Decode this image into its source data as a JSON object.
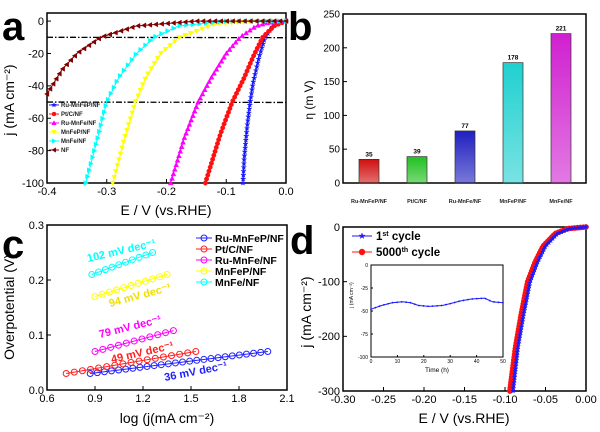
{
  "panel_letters": [
    "a",
    "b",
    "c",
    "d"
  ],
  "chart_data": [
    {
      "panel": "a",
      "type": "line",
      "xlabel": "E / V (vs.RHE)",
      "ylabel": "j (mA cm⁻²)",
      "xlim": [
        -0.4,
        0.0
      ],
      "ylim": [
        -100,
        5
      ],
      "xticks": [
        "-0.4",
        "-0.3",
        "-0.2",
        "-0.1",
        "0.0"
      ],
      "xtick_values": [
        -0.4,
        -0.3,
        -0.2,
        -0.1,
        0.0
      ],
      "yticks": [
        "0",
        "-20",
        "-40",
        "-60",
        "-80",
        "-100"
      ],
      "ytick_values": [
        0,
        -20,
        -40,
        -60,
        -80,
        -100
      ],
      "reference_lines_j": [
        -10,
        -50
      ],
      "legend_placement": "left",
      "series": [
        {
          "name": "Ru-MnFeP/NF",
          "color": "#1a1aff",
          "marker": "star",
          "x": [
            0,
            -0.02,
            -0.035,
            -0.045,
            -0.055,
            -0.06,
            -0.065,
            -0.07,
            -0.072
          ],
          "y": [
            0,
            -2,
            -10,
            -22,
            -38,
            -50,
            -65,
            -85,
            -100
          ]
        },
        {
          "name": "Pt/C/NF",
          "color": "#ff1010",
          "marker": "circle",
          "x": [
            0,
            -0.02,
            -0.039,
            -0.055,
            -0.07,
            -0.09,
            -0.11,
            -0.135
          ],
          "y": [
            0,
            -3,
            -10,
            -22,
            -35,
            -50,
            -70,
            -100
          ]
        },
        {
          "name": "Ru-MnFe/NF",
          "color": "#ff00ff",
          "marker": "triangle-up",
          "x": [
            0,
            -0.03,
            -0.05,
            -0.077,
            -0.1,
            -0.125,
            -0.147,
            -0.17,
            -0.193
          ],
          "y": [
            0,
            -1,
            -3,
            -10,
            -20,
            -35,
            -50,
            -72,
            -100
          ]
        },
        {
          "name": "MnFeP/NF",
          "color": "#ffff00",
          "marker": "triangle-down",
          "x": [
            0,
            -0.05,
            -0.12,
            -0.178,
            -0.21,
            -0.235,
            -0.252,
            -0.27,
            -0.29
          ],
          "y": [
            0,
            0,
            -2,
            -10,
            -20,
            -35,
            -50,
            -72,
            -100
          ]
        },
        {
          "name": "MnFe/NF",
          "color": "#00ffff",
          "marker": "triangle-right",
          "x": [
            0,
            -0.1,
            -0.18,
            -0.221,
            -0.25,
            -0.28,
            -0.3,
            -0.315,
            -0.335
          ],
          "y": [
            0,
            0,
            -3,
            -10,
            -20,
            -35,
            -50,
            -72,
            -100
          ]
        },
        {
          "name": "NF",
          "color": "#800000",
          "marker": "triangle-left",
          "x": [
            0,
            -0.15,
            -0.25,
            -0.31,
            -0.35,
            -0.375,
            -0.4
          ],
          "y": [
            0,
            0,
            -3,
            -10,
            -20,
            -30,
            -45
          ]
        }
      ]
    },
    {
      "panel": "b",
      "type": "bar",
      "ylabel": "η (m V)",
      "ylim": [
        0,
        250
      ],
      "yticks": [
        "0",
        "50",
        "100",
        "150",
        "200",
        "250"
      ],
      "ytick_values": [
        0,
        50,
        100,
        150,
        200,
        250
      ],
      "categories": [
        "Ru-MnFeP/NF",
        "Pt/C/NF",
        "Ru-MnFe/NF",
        "MnFeP/NF",
        "MnFe/NF"
      ],
      "values": [
        35,
        39,
        77,
        178,
        221
      ],
      "data_labels": [
        "35",
        "39",
        "77",
        "178",
        "221"
      ],
      "colors": [
        "#d01010",
        "#20c020",
        "#2020c0",
        "#20d0d0",
        "#d020d0"
      ]
    },
    {
      "panel": "c",
      "type": "scatter",
      "xlabel": "log (j(mA cm⁻²)",
      "ylabel": "Overpotential (V)",
      "xlim": [
        0.6,
        2.1
      ],
      "ylim": [
        0,
        0.3
      ],
      "xticks": [
        "0.6",
        "0.9",
        "1.2",
        "1.5",
        "1.8",
        "2.1"
      ],
      "xtick_values": [
        0.6,
        0.9,
        1.2,
        1.5,
        1.8,
        2.1
      ],
      "yticks": [
        "0.0",
        "0.1",
        "0.2",
        "0.3"
      ],
      "ytick_values": [
        0,
        0.1,
        0.2,
        0.3
      ],
      "legend_placement": "top-right",
      "series": [
        {
          "name": "Ru-MnFeP/NF",
          "color": "#2020ff",
          "slope_label": "36 mV dec⁻¹",
          "x": [
            0.87,
            1.98
          ],
          "y": [
            0.03,
            0.07
          ],
          "points": 26
        },
        {
          "name": "Pt/C/NF",
          "color": "#ff2020",
          "slope_label": "49 mV dec⁻¹",
          "x": [
            0.72,
            1.53
          ],
          "y": [
            0.03,
            0.07
          ],
          "points": 17
        },
        {
          "name": "Ru-MnFe/NF",
          "color": "#ff00ff",
          "slope_label": "79 mV dec⁻¹",
          "x": [
            0.9,
            1.39
          ],
          "y": [
            0.07,
            0.108
          ],
          "points": 11
        },
        {
          "name": "MnFeP/NF",
          "color": "#ffff00",
          "slope_label": "94 mV dec⁻¹",
          "x": [
            0.9,
            1.35
          ],
          "y": [
            0.17,
            0.21
          ],
          "points": 11
        },
        {
          "name": "MnFe/NF",
          "color": "#00ffff",
          "slope_label": "102 mV dec⁻¹",
          "x": [
            0.88,
            1.26
          ],
          "y": [
            0.21,
            0.25
          ],
          "points": 10
        }
      ]
    },
    {
      "panel": "d",
      "type": "line",
      "xlabel": "E / V (vs.RHE)",
      "ylabel": "j (mA cm⁻²)",
      "xlim": [
        -0.3,
        0.0
      ],
      "ylim": [
        -300,
        0
      ],
      "xticks": [
        "-0.30",
        "-0.25",
        "-0.20",
        "-0.15",
        "-0.10",
        "-0.05",
        "0.00"
      ],
      "xtick_values": [
        -0.3,
        -0.25,
        -0.2,
        -0.15,
        -0.1,
        -0.05,
        0
      ],
      "yticks": [
        "0",
        "-100",
        "-200",
        "-300"
      ],
      "ytick_values": [
        0,
        -100,
        -200,
        -300
      ],
      "legend_placement": "top-left",
      "series": [
        {
          "name_main": "1",
          "name_sup": "st",
          "name_rest": " cycle",
          "color": "#1a1aff",
          "marker": "star",
          "x": [
            0,
            -0.02,
            -0.035,
            -0.05,
            -0.06,
            -0.069,
            -0.077,
            -0.084,
            -0.09
          ],
          "y": [
            0,
            -3,
            -12,
            -35,
            -65,
            -100,
            -160,
            -220,
            -300
          ]
        },
        {
          "name_main": "5000",
          "name_sup": "th",
          "name_rest": " cycle",
          "color": "#ff1010",
          "marker": "circle",
          "x": [
            0,
            -0.023,
            -0.038,
            -0.053,
            -0.063,
            -0.072,
            -0.08,
            -0.087,
            -0.094
          ],
          "y": [
            0,
            -3,
            -12,
            -35,
            -65,
            -100,
            -160,
            -220,
            -300
          ]
        }
      ],
      "inset": {
        "type": "line",
        "xlabel": "Time (h)",
        "ylabel": "j (mA cm⁻²)",
        "xlim": [
          0,
          50
        ],
        "ylim": [
          -100,
          0
        ],
        "xticks": [
          "0",
          "10",
          "20",
          "30",
          "40",
          "50"
        ],
        "xtick_values": [
          0,
          10,
          20,
          30,
          40,
          50
        ],
        "yticks": [
          "0",
          "-25",
          "-50",
          "-75",
          "-100"
        ],
        "ytick_values": [
          0,
          -25,
          -50,
          -75,
          -100
        ],
        "color": "#1a1aff",
        "x": [
          0,
          4,
          8,
          12,
          15,
          18,
          22,
          27,
          30,
          34,
          38,
          43,
          46,
          50
        ],
        "y": [
          -48,
          -44,
          -41,
          -40,
          -41,
          -44,
          -45,
          -44,
          -42,
          -39,
          -37,
          -36,
          -40,
          -41
        ]
      }
    }
  ]
}
